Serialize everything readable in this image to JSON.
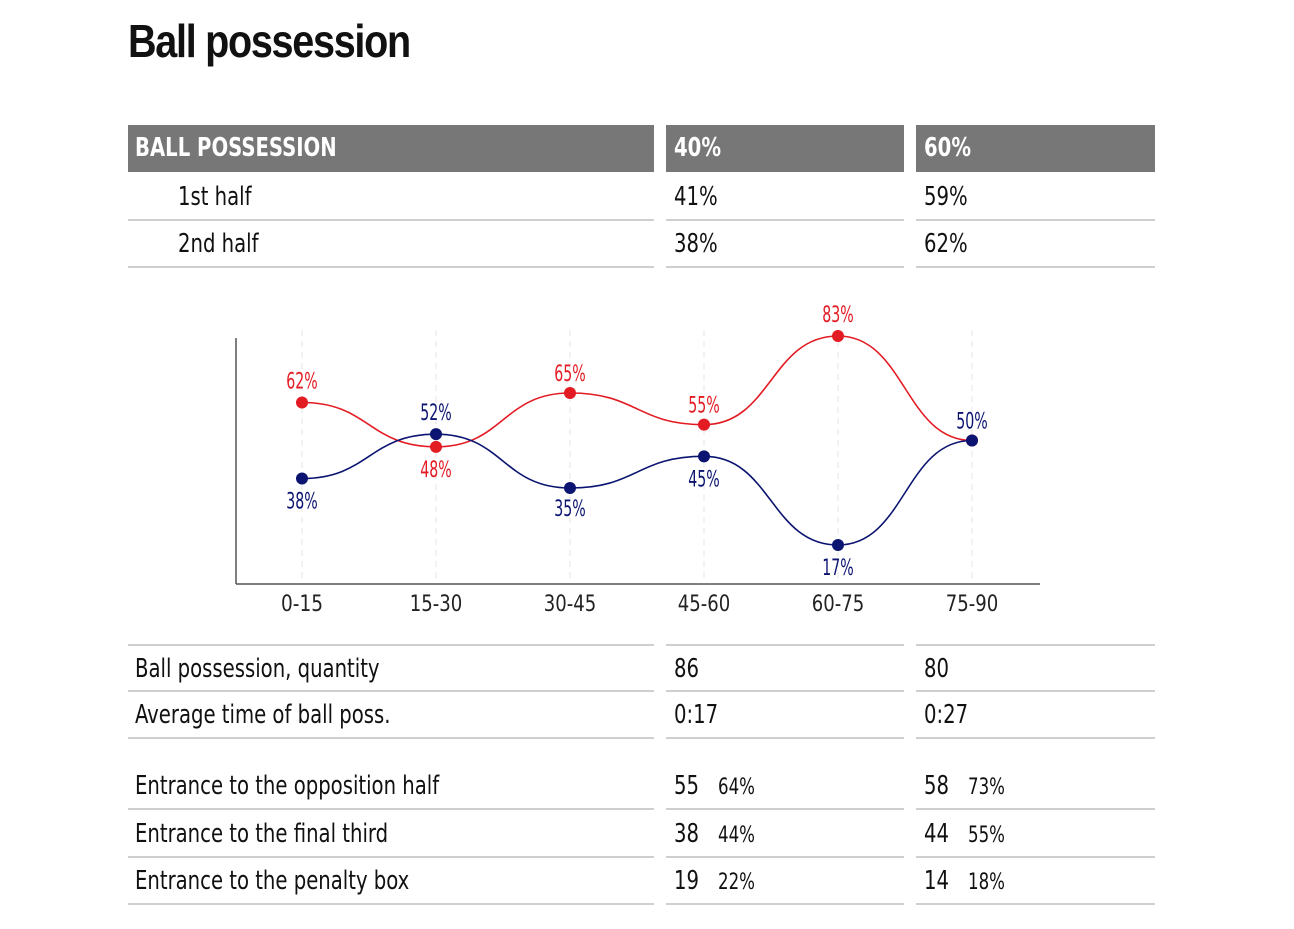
{
  "title": "Ball possession",
  "summary": {
    "header": {
      "label": "BALL POSSESSION",
      "team_a": "40%",
      "team_b": "60%"
    },
    "rows": [
      {
        "label": "1st half",
        "team_a": "41%",
        "team_b": "59%"
      },
      {
        "label": "2nd half",
        "team_a": "38%",
        "team_b": "62%"
      }
    ]
  },
  "stats": {
    "rows": [
      {
        "label": "Ball possession, quantity",
        "team_a": "86",
        "team_b": "80"
      },
      {
        "label": "Average time of ball poss.",
        "team_a": "0:17",
        "team_b": "0:27"
      }
    ]
  },
  "entrances": {
    "rows": [
      {
        "label": "Entrance to the opposition half",
        "team_a": "55",
        "team_a_pct": "64%",
        "team_b": "58",
        "team_b_pct": "73%"
      },
      {
        "label": "Entrance to the final third",
        "team_a": "38",
        "team_a_pct": "44%",
        "team_b": "44",
        "team_b_pct": "55%"
      },
      {
        "label": "Entrance to the penalty box",
        "team_a": "19",
        "team_a_pct": "22%",
        "team_b": "14",
        "team_b_pct": "18%"
      }
    ]
  },
  "chart_data": {
    "type": "line",
    "categories": [
      "0-15",
      "15-30",
      "30-45",
      "45-60",
      "60-75",
      "75-90"
    ],
    "series": [
      {
        "color": "#e31b23",
        "values": [
          62,
          48,
          65,
          55,
          83,
          50
        ],
        "labels": [
          "62%",
          "48%",
          "65%",
          "55%",
          "83%",
          ""
        ]
      },
      {
        "color": "#0b1470",
        "values": [
          38,
          52,
          35,
          45,
          17,
          50
        ],
        "labels": [
          "38%",
          "52%",
          "35%",
          "45%",
          "17%",
          "50%"
        ]
      }
    ],
    "ylim": [
      10,
      90
    ],
    "grid": "vertical dashed",
    "legend": "none"
  }
}
